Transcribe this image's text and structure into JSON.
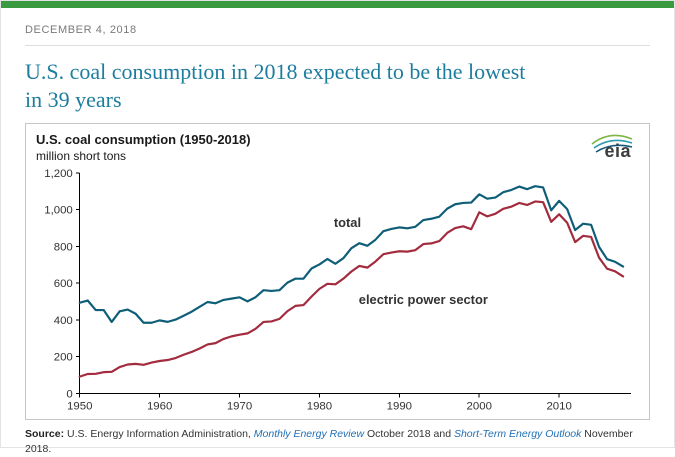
{
  "page": {
    "date": "DECEMBER 4, 2018",
    "title": "U.S. coal consumption in 2018 expected to be the lowest\nin 39 years"
  },
  "chart": {
    "title": "U.S. coal consumption (1950-2018)",
    "subtitle": "million short tons",
    "logo_text": "eia"
  },
  "source": {
    "prefix": "Source:",
    "text1": " U.S. Energy Information Administration, ",
    "link1": "Monthly Energy Review",
    "text2": " October 2018 and ",
    "link2": "Short-Term Energy Outlook",
    "text3": " November 2018."
  },
  "colors": {
    "topbar_green": "#3a9a3f",
    "headline_teal": "#1d7d9e",
    "total_line": "#0f5e78",
    "electric_power_line": "#a22b3e",
    "link_blue": "#1f6fb5"
  },
  "chart_data": {
    "type": "line",
    "title": "U.S. coal consumption (1950-2018)",
    "ylabel": "million short tons",
    "xlim": [
      1950,
      2019
    ],
    "ylim": [
      0,
      1200
    ],
    "yticks": [
      0,
      200,
      400,
      600,
      800,
      1000,
      1200
    ],
    "xticks": [
      1950,
      1960,
      1970,
      1980,
      1990,
      2000,
      2010
    ],
    "grid": false,
    "legend": "inline-labels",
    "x_start": 1950,
    "x_step": 1,
    "series": [
      {
        "name": "total",
        "color": "#0f5e78",
        "values": [
          494,
          506,
          454,
          454,
          389,
          447,
          457,
          434,
          385,
          385,
          398,
          390,
          402,
          423,
          445,
          472,
          498,
          491,
          509,
          516,
          523,
          501,
          524,
          562,
          558,
          562,
          603,
          625,
          625,
          680,
          702,
          732,
          706,
          736,
          791,
          818,
          804,
          836,
          883,
          895,
          904,
          899,
          907,
          944,
          951,
          962,
          1006,
          1030,
          1037,
          1039,
          1084,
          1060,
          1066,
          1095,
          1107,
          1126,
          1112,
          1128,
          1121,
          997,
          1048,
          1003,
          889,
          924,
          918,
          798,
          731,
          717,
          691
        ]
      },
      {
        "name": "electric power sector",
        "color": "#a22b3e",
        "values": [
          92,
          106,
          107,
          116,
          118,
          144,
          158,
          161,
          156,
          168,
          177,
          182,
          193,
          211,
          226,
          245,
          267,
          274,
          297,
          311,
          320,
          327,
          352,
          389,
          392,
          406,
          448,
          477,
          481,
          527,
          569,
          597,
          594,
          625,
          664,
          694,
          685,
          718,
          758,
          767,
          774,
          772,
          780,
          813,
          817,
          829,
          874,
          900,
          910,
          894,
          986,
          964,
          978,
          1005,
          1016,
          1037,
          1026,
          1045,
          1041,
          934,
          975,
          929,
          824,
          858,
          852,
          739,
          679,
          665,
          637
        ]
      }
    ],
    "annotations": [
      {
        "text": "total",
        "x": 1983.5,
        "y": 905,
        "color": "#0f5e78"
      },
      {
        "text": "electric power sector",
        "x": 1993,
        "y": 488,
        "color": "#a22b3e"
      }
    ]
  }
}
